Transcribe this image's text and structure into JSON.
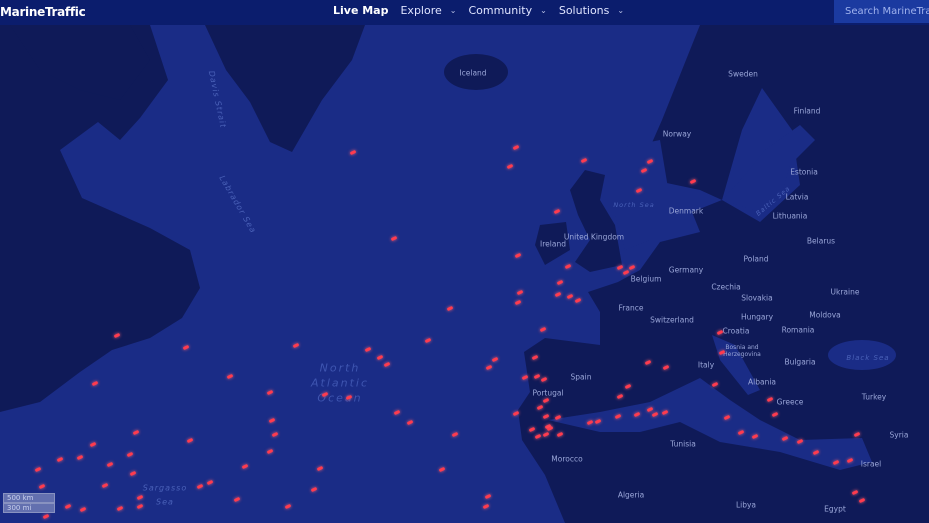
{
  "header": {
    "logo": "MarineTraffic",
    "nav": [
      {
        "label": "Live Map",
        "active": true
      },
      {
        "label": "Explore"
      },
      {
        "label": "Community"
      },
      {
        "label": "Solutions"
      }
    ],
    "search_placeholder": "Search MarineTraffic"
  },
  "map": {
    "colors": {
      "ocean": "#1a2c86",
      "land": "#0f1a58",
      "ship": "#ff3b4e",
      "header": "#0b1d6d"
    },
    "countries": [
      "Iceland",
      "Sweden",
      "Finland",
      "Norway",
      "Estonia",
      "Latvia",
      "Lithuania",
      "Denmark",
      "Ireland",
      "United Kingdom",
      "Belarus",
      "Belgium",
      "Germany",
      "Poland",
      "Czechia",
      "Slovakia",
      "Ukraine",
      "France",
      "Switzerland",
      "Hungary",
      "Moldova",
      "Croatia",
      "Bosnia and Herzegovina",
      "Romania",
      "Bulgaria",
      "Italy",
      "Spain",
      "Portugal",
      "Albania",
      "Greece",
      "Turkey",
      "Syria",
      "Israel",
      "Tunisia",
      "Morocco",
      "Algeria",
      "Libya",
      "Egypt"
    ],
    "seas": {
      "davis": "Davis Strait",
      "labrador": "Labrador Sea",
      "north_sea": "North Sea",
      "baltic": "Baltic Sea",
      "black": "Black Sea",
      "atlantic": [
        "North",
        "Atlantic",
        "Ocean"
      ],
      "sargasso": [
        "Sargasso",
        "Sea"
      ]
    },
    "scale": {
      "km": "500 km",
      "mi": "300 mi"
    }
  }
}
